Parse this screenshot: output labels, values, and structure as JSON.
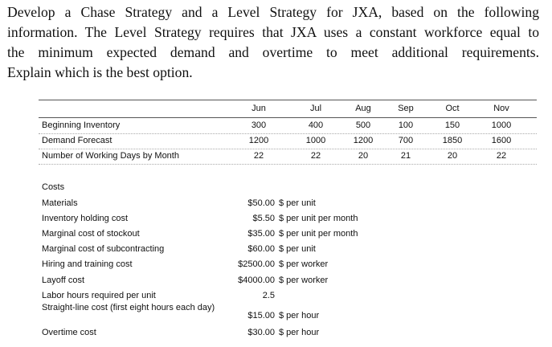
{
  "intro_lines": [
    "Develop a Chase Strategy and a Level Strategy for JXA, based on the following",
    "information. The Level Strategy requires that JXA uses a constant workforce equal to",
    "the minimum expected demand and overtime to meet additional requirements.",
    "Explain which is the best option."
  ],
  "table": {
    "header": [
      "Jun",
      "Jul",
      "Aug",
      "Sep",
      "Oct",
      "Nov"
    ],
    "rows": [
      {
        "label": "Beginning Inventory",
        "values": [
          300,
          400,
          500,
          100,
          150,
          1000
        ]
      },
      {
        "label": "Demand Forecast",
        "values": [
          1200,
          1000,
          1200,
          700,
          1850,
          1600
        ]
      },
      {
        "label": "Number of Working Days by Month",
        "values": [
          22,
          22,
          20,
          21,
          20,
          22
        ]
      }
    ]
  },
  "costs": {
    "title": "Costs",
    "rows": [
      {
        "label": "Materials",
        "value": "$50.00",
        "unit": "$ per unit"
      },
      {
        "label": "Inventory holding cost",
        "value": "$5.50",
        "unit": "$ per unit per month"
      },
      {
        "label": "Marginal cost of stockout",
        "value": "$35.00",
        "unit": "$ per unit per month"
      },
      {
        "label": "Marginal cost of subcontracting",
        "value": "$60.00",
        "unit": "$ per unit"
      },
      {
        "label": "Hiring and training cost",
        "value": "$2500.00",
        "unit": "$ per worker"
      },
      {
        "label": "Layoff cost",
        "value": "$4000.00",
        "unit": "$ per worker"
      },
      {
        "label": "Labor hours required per unit",
        "value": "2.5"
      },
      {
        "label": "Straight-line cost (first eight hours each day)",
        "value": "$15.00",
        "unit": "$ per hour"
      },
      {
        "label": "Overtime cost",
        "value": "$30.00",
        "unit": "$ per hour"
      }
    ]
  }
}
